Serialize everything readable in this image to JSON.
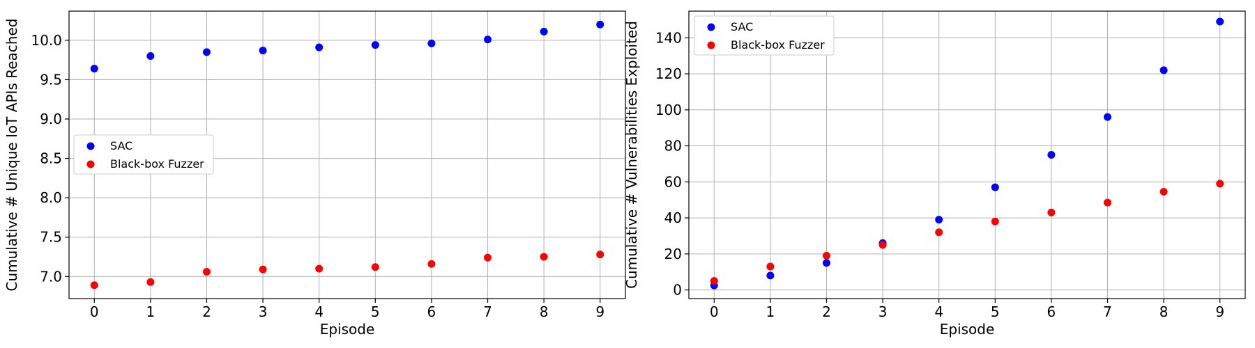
{
  "chart_data": [
    {
      "type": "scatter",
      "xlabel": "Episode",
      "ylabel": "Cumulative # Unique IoT APIs Reached",
      "x": [
        0,
        1,
        2,
        3,
        4,
        5,
        6,
        7,
        8,
        9
      ],
      "xlim": [
        -0.45,
        9.45
      ],
      "ylim": [
        6.72,
        10.37
      ],
      "xticks": [
        0,
        1,
        2,
        3,
        4,
        5,
        6,
        7,
        8,
        9
      ],
      "yticks": [
        7.0,
        7.5,
        8.0,
        8.5,
        9.0,
        9.5,
        10.0
      ],
      "ytick_labels": [
        "7.0",
        "7.5",
        "8.0",
        "8.5",
        "9.0",
        "9.5",
        "10.0"
      ],
      "grid": true,
      "legend_position": "center-left",
      "series": [
        {
          "name": "SAC",
          "color": "#0000ff",
          "values": [
            9.64,
            9.8,
            9.85,
            9.87,
            9.91,
            9.94,
            9.96,
            10.01,
            10.11,
            10.2
          ]
        },
        {
          "name": "Black-box Fuzzer",
          "color": "#ff0000",
          "values": [
            6.89,
            6.93,
            7.06,
            7.09,
            7.1,
            7.12,
            7.16,
            7.24,
            7.25,
            7.28
          ]
        }
      ]
    },
    {
      "type": "scatter",
      "xlabel": "Episode",
      "ylabel": "Cumulative # Vulnerabilities Exploited",
      "x": [
        0,
        1,
        2,
        3,
        4,
        5,
        6,
        7,
        8,
        9
      ],
      "xlim": [
        -0.45,
        9.45
      ],
      "ylim": [
        -4.8,
        154.8
      ],
      "xticks": [
        0,
        1,
        2,
        3,
        4,
        5,
        6,
        7,
        8,
        9
      ],
      "yticks": [
        0,
        20,
        40,
        60,
        80,
        100,
        120,
        140
      ],
      "ytick_labels": [
        "0",
        "20",
        "40",
        "60",
        "80",
        "100",
        "120",
        "140"
      ],
      "grid": true,
      "legend_position": "top-left",
      "series": [
        {
          "name": "SAC",
          "color": "#0000ff",
          "values": [
            2.5,
            8,
            15,
            26,
            39,
            57,
            75,
            96,
            122,
            149
          ]
        },
        {
          "name": "Black-box Fuzzer",
          "color": "#ff0000",
          "values": [
            5,
            13,
            19,
            25,
            32,
            38,
            43,
            48.5,
            54.5,
            59
          ]
        }
      ]
    }
  ]
}
